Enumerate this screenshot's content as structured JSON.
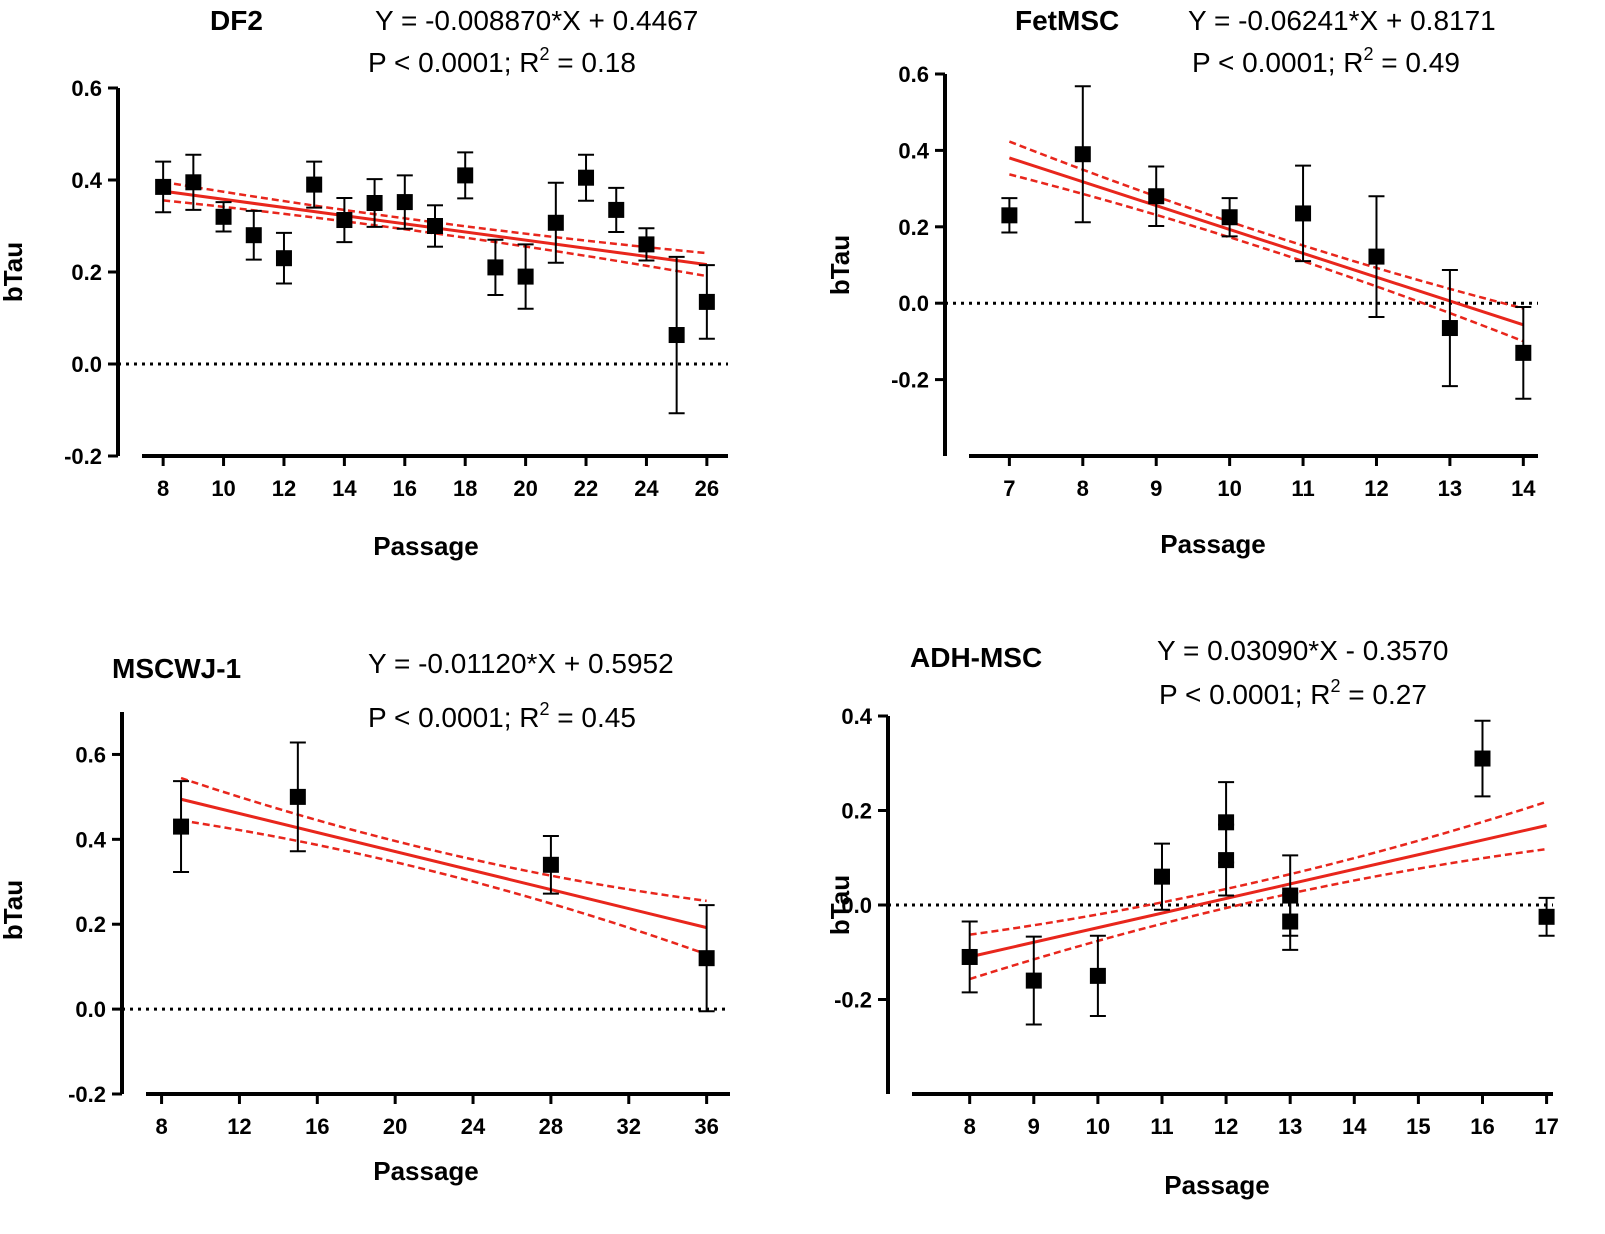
{
  "chart_data": [
    {
      "type": "scatter",
      "title": "DF2",
      "equation": "Y = -0.008870*X + 0.4467",
      "stats": {
        "prefix": "P < 0.0001; R",
        "sup": "2",
        "suffix": " = 0.18"
      },
      "xlabel": "Passage",
      "ylabel": "bTau",
      "xlim": [
        7.3,
        26.7
      ],
      "ylim": [
        -0.2,
        0.6
      ],
      "xticks": [
        8,
        10,
        12,
        14,
        16,
        18,
        20,
        22,
        24,
        26
      ],
      "yticks": [
        -0.2,
        0.0,
        0.2,
        0.4,
        0.6
      ],
      "ytick_labels": [
        "-0.2",
        "0.0",
        "0.2",
        "0.4",
        "0.6"
      ],
      "fit": {
        "slope": -0.00887,
        "intercept": 0.4467,
        "x_range": [
          8,
          26
        ],
        "ci_half": [
          0.02,
          0.012,
          0.025
        ]
      },
      "points": [
        {
          "x": 8,
          "y": 0.385,
          "err": 0.055
        },
        {
          "x": 9,
          "y": 0.395,
          "err": 0.06
        },
        {
          "x": 10,
          "y": 0.32,
          "err": 0.032
        },
        {
          "x": 11,
          "y": 0.28,
          "err": 0.053
        },
        {
          "x": 12,
          "y": 0.23,
          "err": 0.055
        },
        {
          "x": 13,
          "y": 0.39,
          "err": 0.05
        },
        {
          "x": 14,
          "y": 0.313,
          "err": 0.048
        },
        {
          "x": 15,
          "y": 0.35,
          "err": 0.052
        },
        {
          "x": 16,
          "y": 0.352,
          "err": 0.058
        },
        {
          "x": 17,
          "y": 0.3,
          "err": 0.045
        },
        {
          "x": 18,
          "y": 0.41,
          "err": 0.05
        },
        {
          "x": 19,
          "y": 0.21,
          "err": 0.06
        },
        {
          "x": 20,
          "y": 0.19,
          "err": 0.07
        },
        {
          "x": 21,
          "y": 0.307,
          "err": 0.087
        },
        {
          "x": 22,
          "y": 0.405,
          "err": 0.05
        },
        {
          "x": 23,
          "y": 0.335,
          "err": 0.048
        },
        {
          "x": 24,
          "y": 0.26,
          "err": 0.035
        },
        {
          "x": 25,
          "y": 0.063,
          "err": 0.17
        },
        {
          "x": 26,
          "y": 0.135,
          "err": 0.08
        }
      ]
    },
    {
      "type": "scatter",
      "title": "FetMSC",
      "equation": "Y = -0.06241*X + 0.8171",
      "stats": {
        "prefix": "P < 0.0001; R",
        "sup": "2",
        "suffix": " = 0.49"
      },
      "xlabel": "Passage",
      "ylabel": "bTau",
      "xlim": [
        6.45,
        14.2
      ],
      "ylim": [
        -0.4,
        0.6
      ],
      "xticks": [
        7,
        8,
        9,
        10,
        11,
        12,
        13,
        14
      ],
      "yticks": [
        -0.2,
        0.0,
        0.2,
        0.4,
        0.6
      ],
      "ytick_labels": [
        "-0.2",
        "0.0",
        "0.2",
        "0.4",
        "0.6"
      ],
      "fit": {
        "slope": -0.06241,
        "intercept": 0.8171,
        "x_range": [
          7,
          14
        ],
        "ci_half": [
          0.043,
          0.02,
          0.043
        ]
      },
      "points": [
        {
          "x": 7,
          "y": 0.23,
          "err": 0.045
        },
        {
          "x": 8,
          "y": 0.39,
          "err": 0.178
        },
        {
          "x": 9,
          "y": 0.28,
          "err": 0.078
        },
        {
          "x": 10,
          "y": 0.225,
          "err": 0.05
        },
        {
          "x": 11,
          "y": 0.235,
          "err": 0.125
        },
        {
          "x": 12,
          "y": 0.122,
          "err": 0.158
        },
        {
          "x": 13,
          "y": -0.065,
          "err": 0.152
        },
        {
          "x": 14,
          "y": -0.13,
          "err": 0.12
        }
      ]
    },
    {
      "type": "scatter",
      "title": "MSCWJ-1",
      "equation": "Y = -0.01120*X + 0.5952",
      "stats": {
        "prefix": "P < 0.0001; R",
        "sup": "2",
        "suffix": " = 0.45"
      },
      "xlabel": "Passage",
      "ylabel": "bTau",
      "xlim": [
        7.2,
        37.2
      ],
      "ylim": [
        -0.2,
        0.7
      ],
      "xticks": [
        8,
        12,
        16,
        20,
        24,
        28,
        32,
        36
      ],
      "yticks": [
        -0.2,
        0.0,
        0.2,
        0.4,
        0.6
      ],
      "ytick_labels": [
        "-0.2",
        "0.0",
        "0.2",
        "0.4",
        "0.6"
      ],
      "fit": {
        "slope": -0.0112,
        "intercept": 0.5952,
        "x_range": [
          9,
          36
        ],
        "ci_half": [
          0.05,
          0.025,
          0.063
        ]
      },
      "points": [
        {
          "x": 9,
          "y": 0.43,
          "err": 0.107
        },
        {
          "x": 15,
          "y": 0.5,
          "err": 0.128
        },
        {
          "x": 28,
          "y": 0.34,
          "err": 0.068
        },
        {
          "x": 36,
          "y": 0.12,
          "err": 0.125
        }
      ]
    },
    {
      "type": "scatter",
      "title": "ADH-MSC",
      "equation": "Y = 0.03090*X - 0.3570",
      "stats": {
        "prefix": "P < 0.0001; R",
        "sup": "2",
        "suffix": " = 0.27"
      },
      "xlabel": "Passage",
      "ylabel": "bTau",
      "xlim": [
        7.1,
        17.1
      ],
      "ylim": [
        -0.4,
        0.4
      ],
      "xticks": [
        8,
        9,
        10,
        11,
        12,
        13,
        14,
        15,
        16,
        17
      ],
      "yticks": [
        -0.2,
        0.0,
        0.2,
        0.4
      ],
      "ytick_labels": [
        "-0.2",
        "0.0",
        "0.2",
        "0.4"
      ],
      "fit": {
        "slope": 0.0309,
        "intercept": -0.357,
        "x_range": [
          8,
          17
        ],
        "ci_half": [
          0.047,
          0.02,
          0.05
        ]
      },
      "points": [
        {
          "x": 8,
          "y": -0.11,
          "err": 0.075
        },
        {
          "x": 9,
          "y": -0.16,
          "err": 0.093
        },
        {
          "x": 10,
          "y": -0.15,
          "err": 0.085
        },
        {
          "x": 11,
          "y": 0.06,
          "err": 0.07
        },
        {
          "x": 12,
          "y": 0.175,
          "err": 0.085
        },
        {
          "x": 12,
          "y": 0.095,
          "err": 0.075
        },
        {
          "x": 13,
          "y": 0.02,
          "err": 0.085
        },
        {
          "x": 13,
          "y": -0.035,
          "err": 0.06
        },
        {
          "x": 16,
          "y": 0.31,
          "err": 0.08
        },
        {
          "x": 17,
          "y": -0.025,
          "err": 0.04
        }
      ]
    }
  ]
}
